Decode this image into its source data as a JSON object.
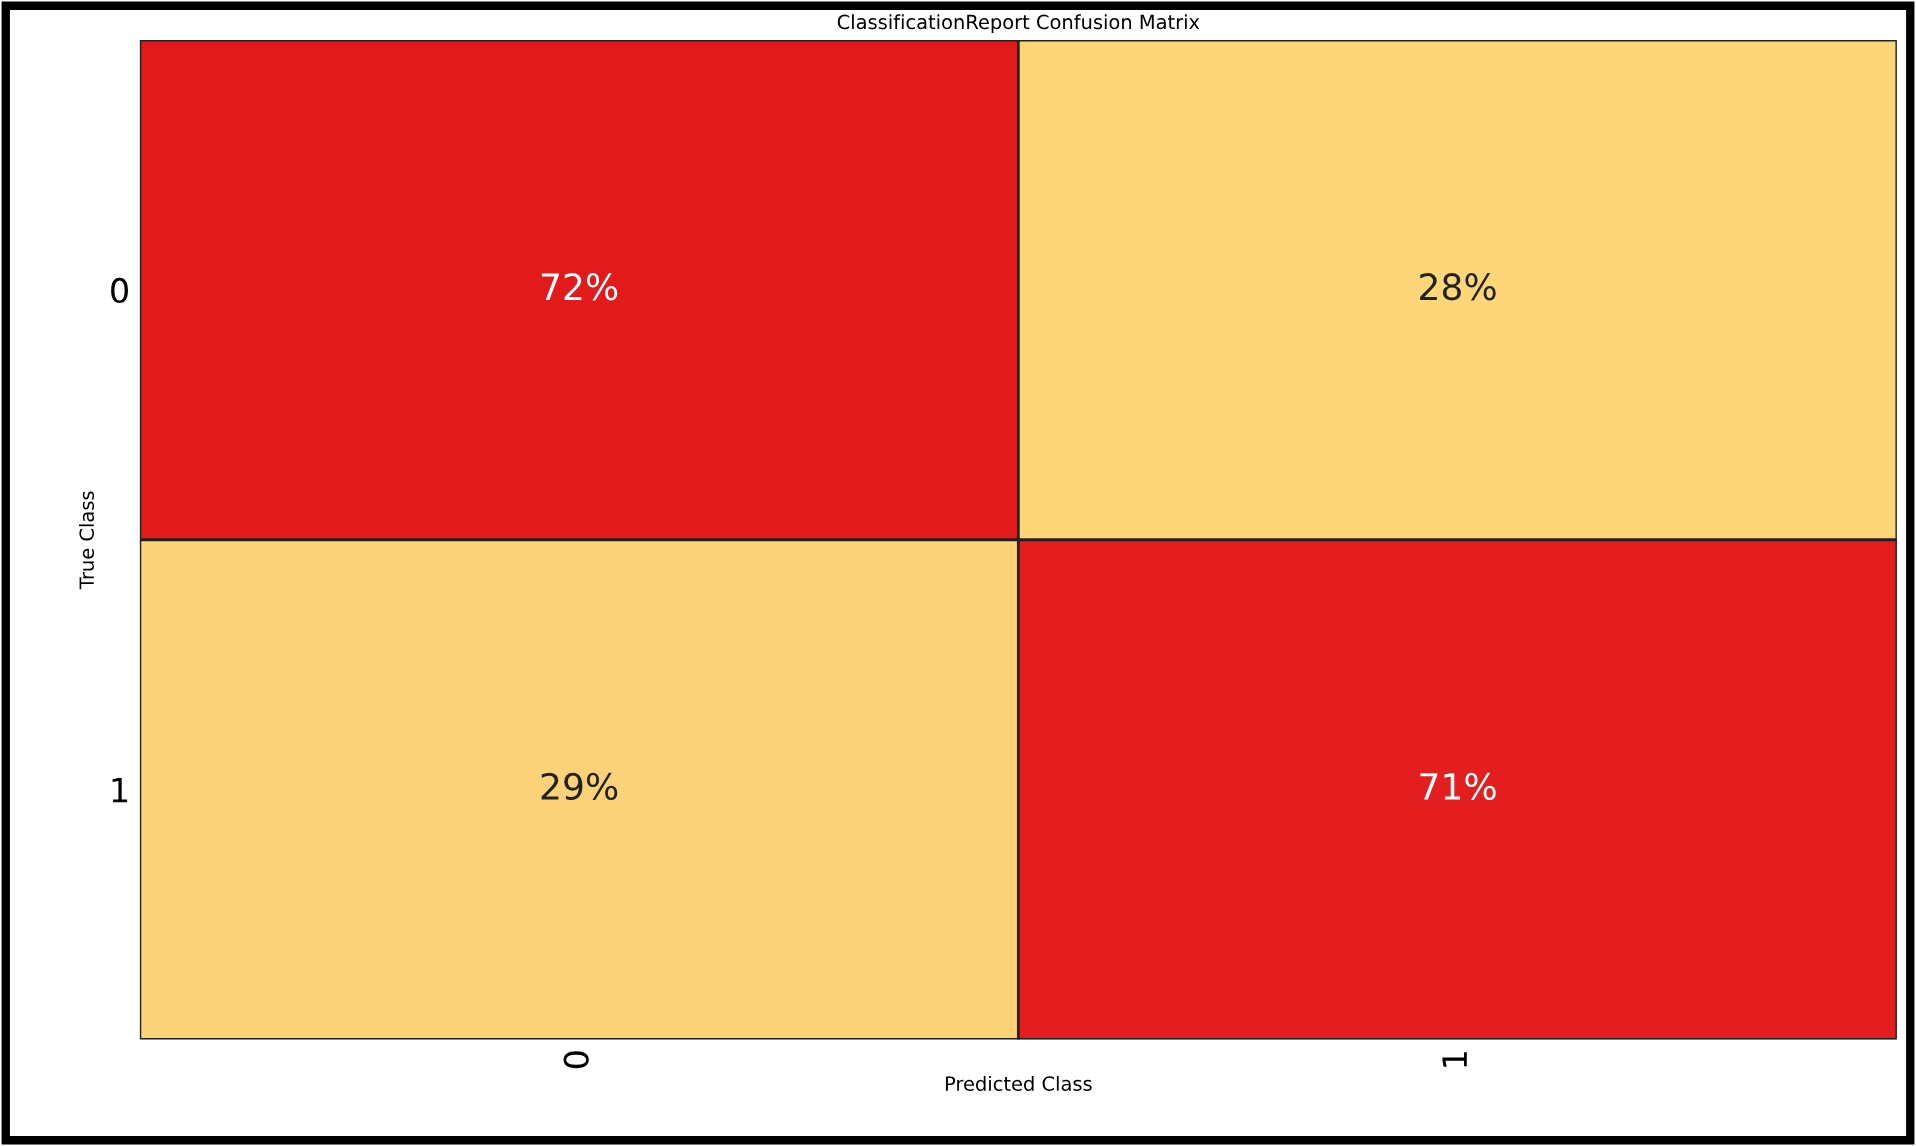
{
  "chart_data": {
    "type": "heatmap",
    "title": "ClassificationReport Confusion Matrix",
    "xlabel": "Predicted Class",
    "ylabel": "True Class",
    "categories": [
      "0",
      "1"
    ],
    "y_categories": [
      "0",
      "1"
    ],
    "cells": [
      [
        72,
        28
      ],
      [
        29,
        71
      ]
    ],
    "cell_labels": [
      [
        "72%",
        "28%"
      ],
      [
        "29%",
        "71%"
      ]
    ]
  }
}
